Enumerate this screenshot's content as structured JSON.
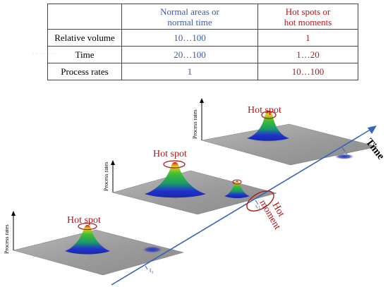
{
  "table": {
    "header": [
      "",
      "Normal areas or\nnormal time",
      "Hot spots or\nhot moments"
    ],
    "rows": [
      {
        "label": "Relative volume",
        "normal": "10…100",
        "hot": "1"
      },
      {
        "label": "Time",
        "normal": "20…100",
        "hot": "1…20"
      },
      {
        "label": "Process rates",
        "normal": "1",
        "hot": "10…100"
      }
    ]
  },
  "diagram": {
    "time_axis_label": "Time",
    "hot_spot_label": "Hot spot",
    "hot_moment_label": "Hot\nmoment",
    "y_axis_label": "Process rates",
    "tick_labels": [
      "t",
      "t",
      "t"
    ],
    "tick_subscripts": [
      "1",
      "2",
      "3"
    ]
  },
  "colors": {
    "normal": "#3a5aa8",
    "hot": "#b01818",
    "axis": "#3465b8",
    "plane": "#9a9a9a"
  }
}
